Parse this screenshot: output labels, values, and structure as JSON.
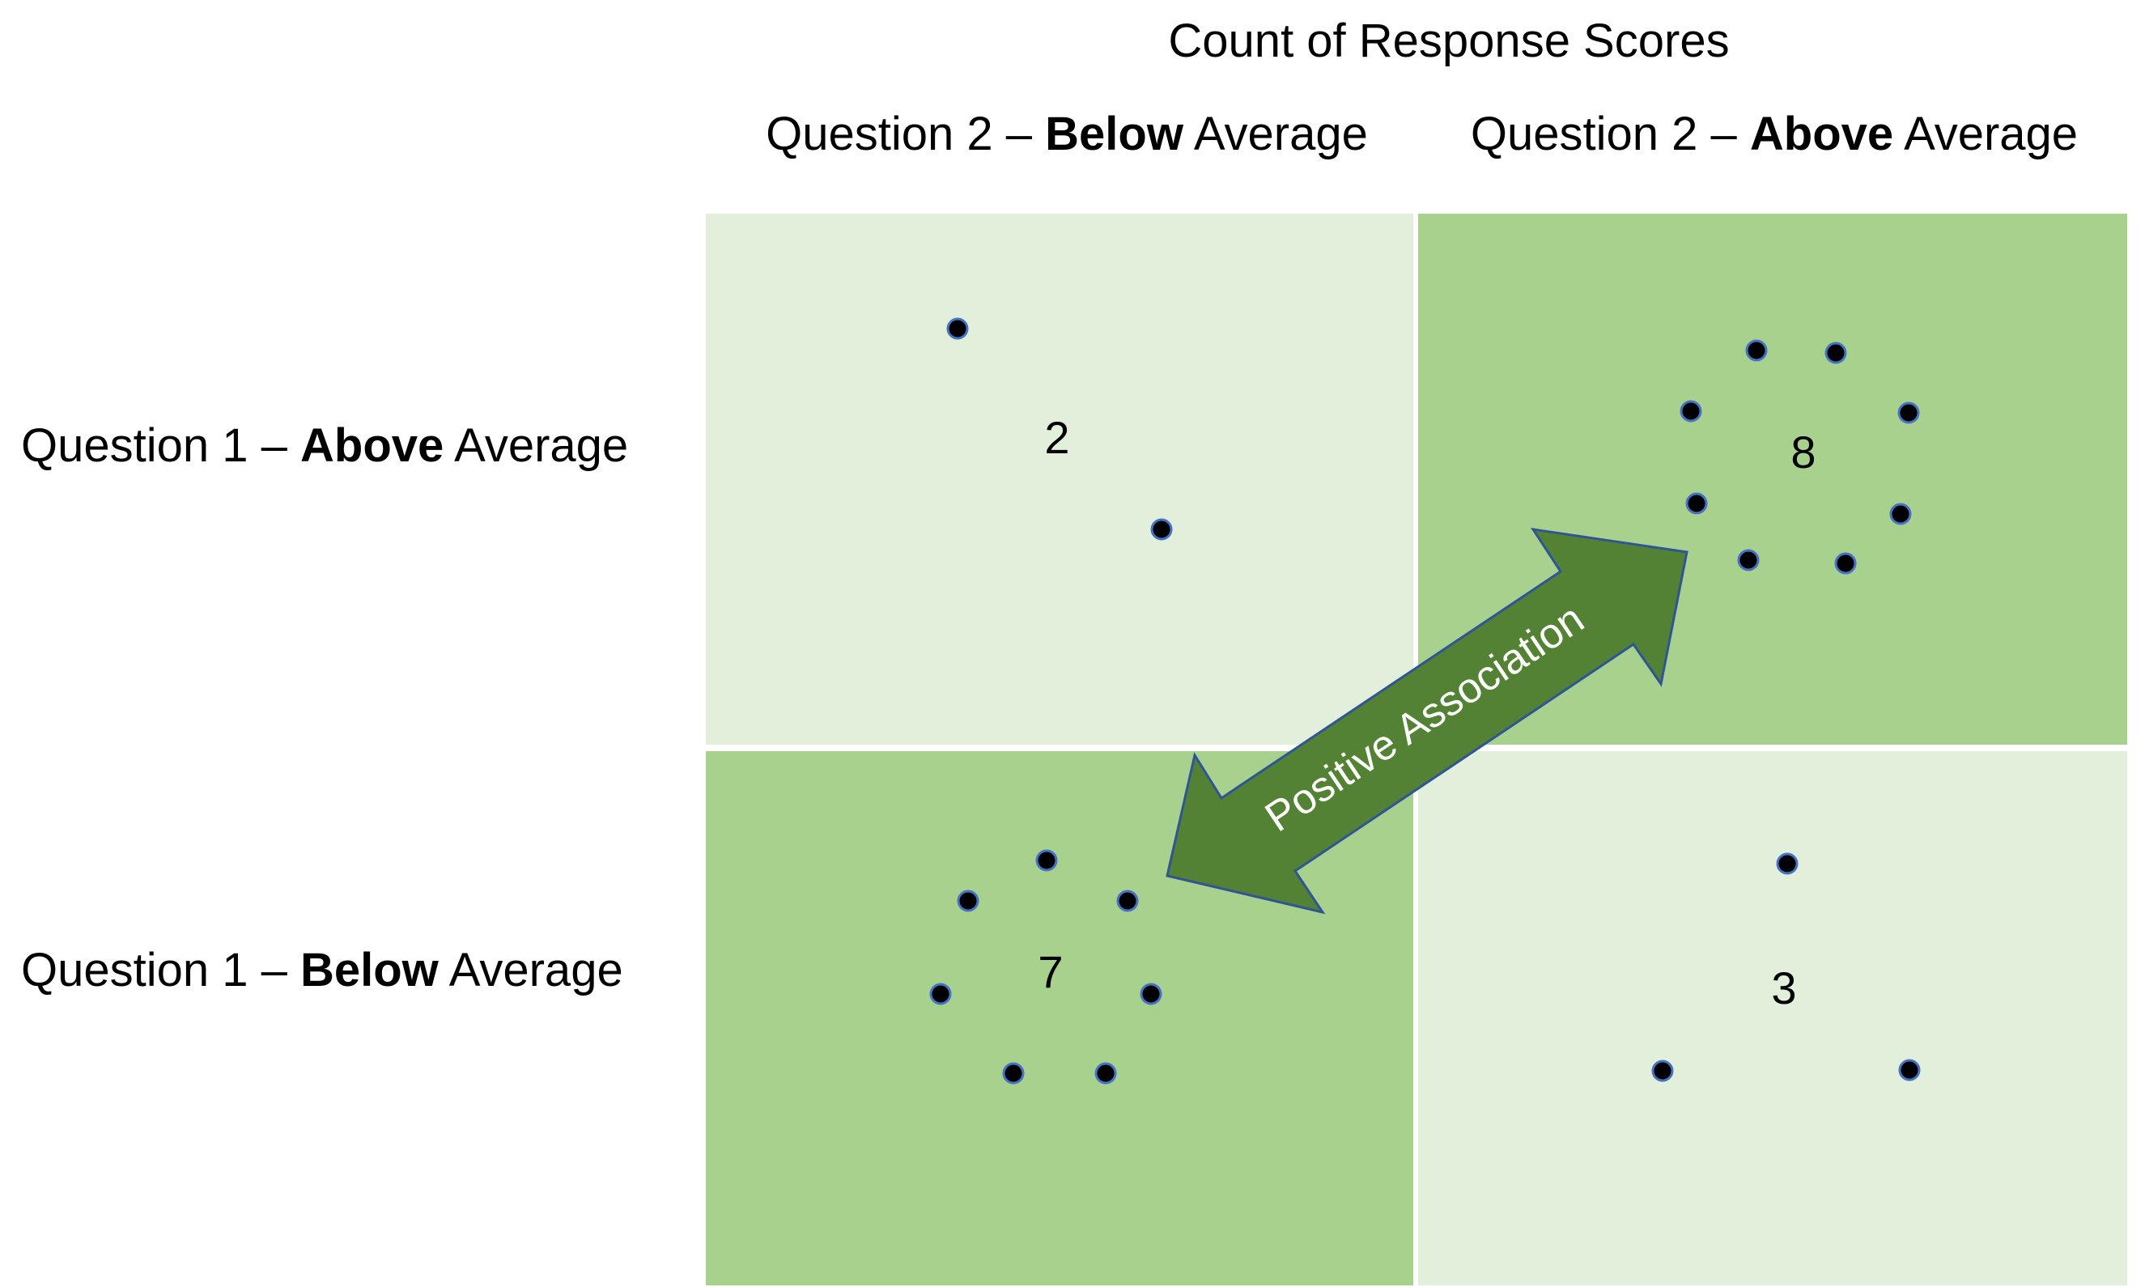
{
  "title": "Count of Response Scores",
  "columns": [
    {
      "prefix": "Question 2 – ",
      "emphasis": "Below",
      "suffix": " Average"
    },
    {
      "prefix": "Question 2 – ",
      "emphasis": "Above",
      "suffix": " Average"
    }
  ],
  "rows": [
    {
      "prefix": "Question 1 – ",
      "emphasis": "Above",
      "suffix": " Average"
    },
    {
      "prefix": "Question 1 – ",
      "emphasis": "Below",
      "suffix": " Average"
    }
  ],
  "cells": [
    {
      "row": 0,
      "col": 0,
      "count": "2",
      "shade": "light"
    },
    {
      "row": 0,
      "col": 1,
      "count": "8",
      "shade": "dark"
    },
    {
      "row": 1,
      "col": 0,
      "count": "7",
      "shade": "dark"
    },
    {
      "row": 1,
      "col": 1,
      "count": "3",
      "shade": "light"
    }
  ],
  "arrow": {
    "label": "Positive Association"
  },
  "colors": {
    "light_cell": "#e2efda",
    "dark_cell": "#a9d18e",
    "arrow_fill": "#548235",
    "arrow_stroke": "#2f5597",
    "dot_fill": "#000000",
    "dot_stroke": "#4472c4"
  }
}
